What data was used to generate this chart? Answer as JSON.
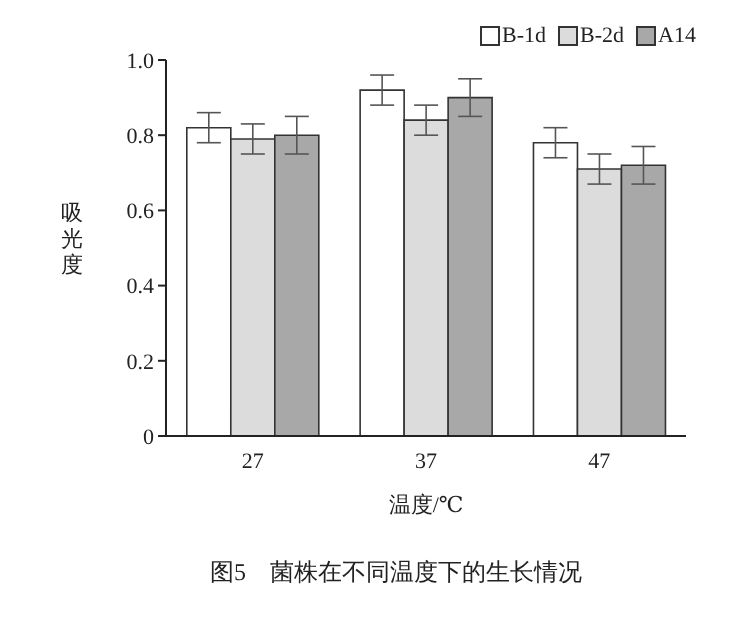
{
  "chart_data": {
    "type": "bar",
    "xlabel": "温度/℃",
    "ylabel": "吸光度",
    "categories": [
      "27",
      "37",
      "47"
    ],
    "series": [
      {
        "name": "B-1d",
        "color": "#ffffff",
        "values": [
          0.82,
          0.92,
          0.78
        ],
        "errors": [
          0.04,
          0.04,
          0.04
        ]
      },
      {
        "name": "B-2d",
        "color": "#dcdcdc",
        "values": [
          0.79,
          0.84,
          0.71
        ],
        "errors": [
          0.04,
          0.04,
          0.04
        ]
      },
      {
        "name": "A14",
        "color": "#a8a8a8",
        "values": [
          0.8,
          0.9,
          0.72
        ],
        "errors": [
          0.05,
          0.05,
          0.05
        ]
      }
    ],
    "ylim": [
      0,
      1.0
    ],
    "yticks": [
      0,
      0.2,
      0.4,
      0.6,
      0.8,
      {
        "value": 1.0,
        "label": "1.0"
      }
    ],
    "grid": false,
    "legend": "top right",
    "annotations": [
      "图5　菌株在不同温度下的生长情况"
    ]
  }
}
